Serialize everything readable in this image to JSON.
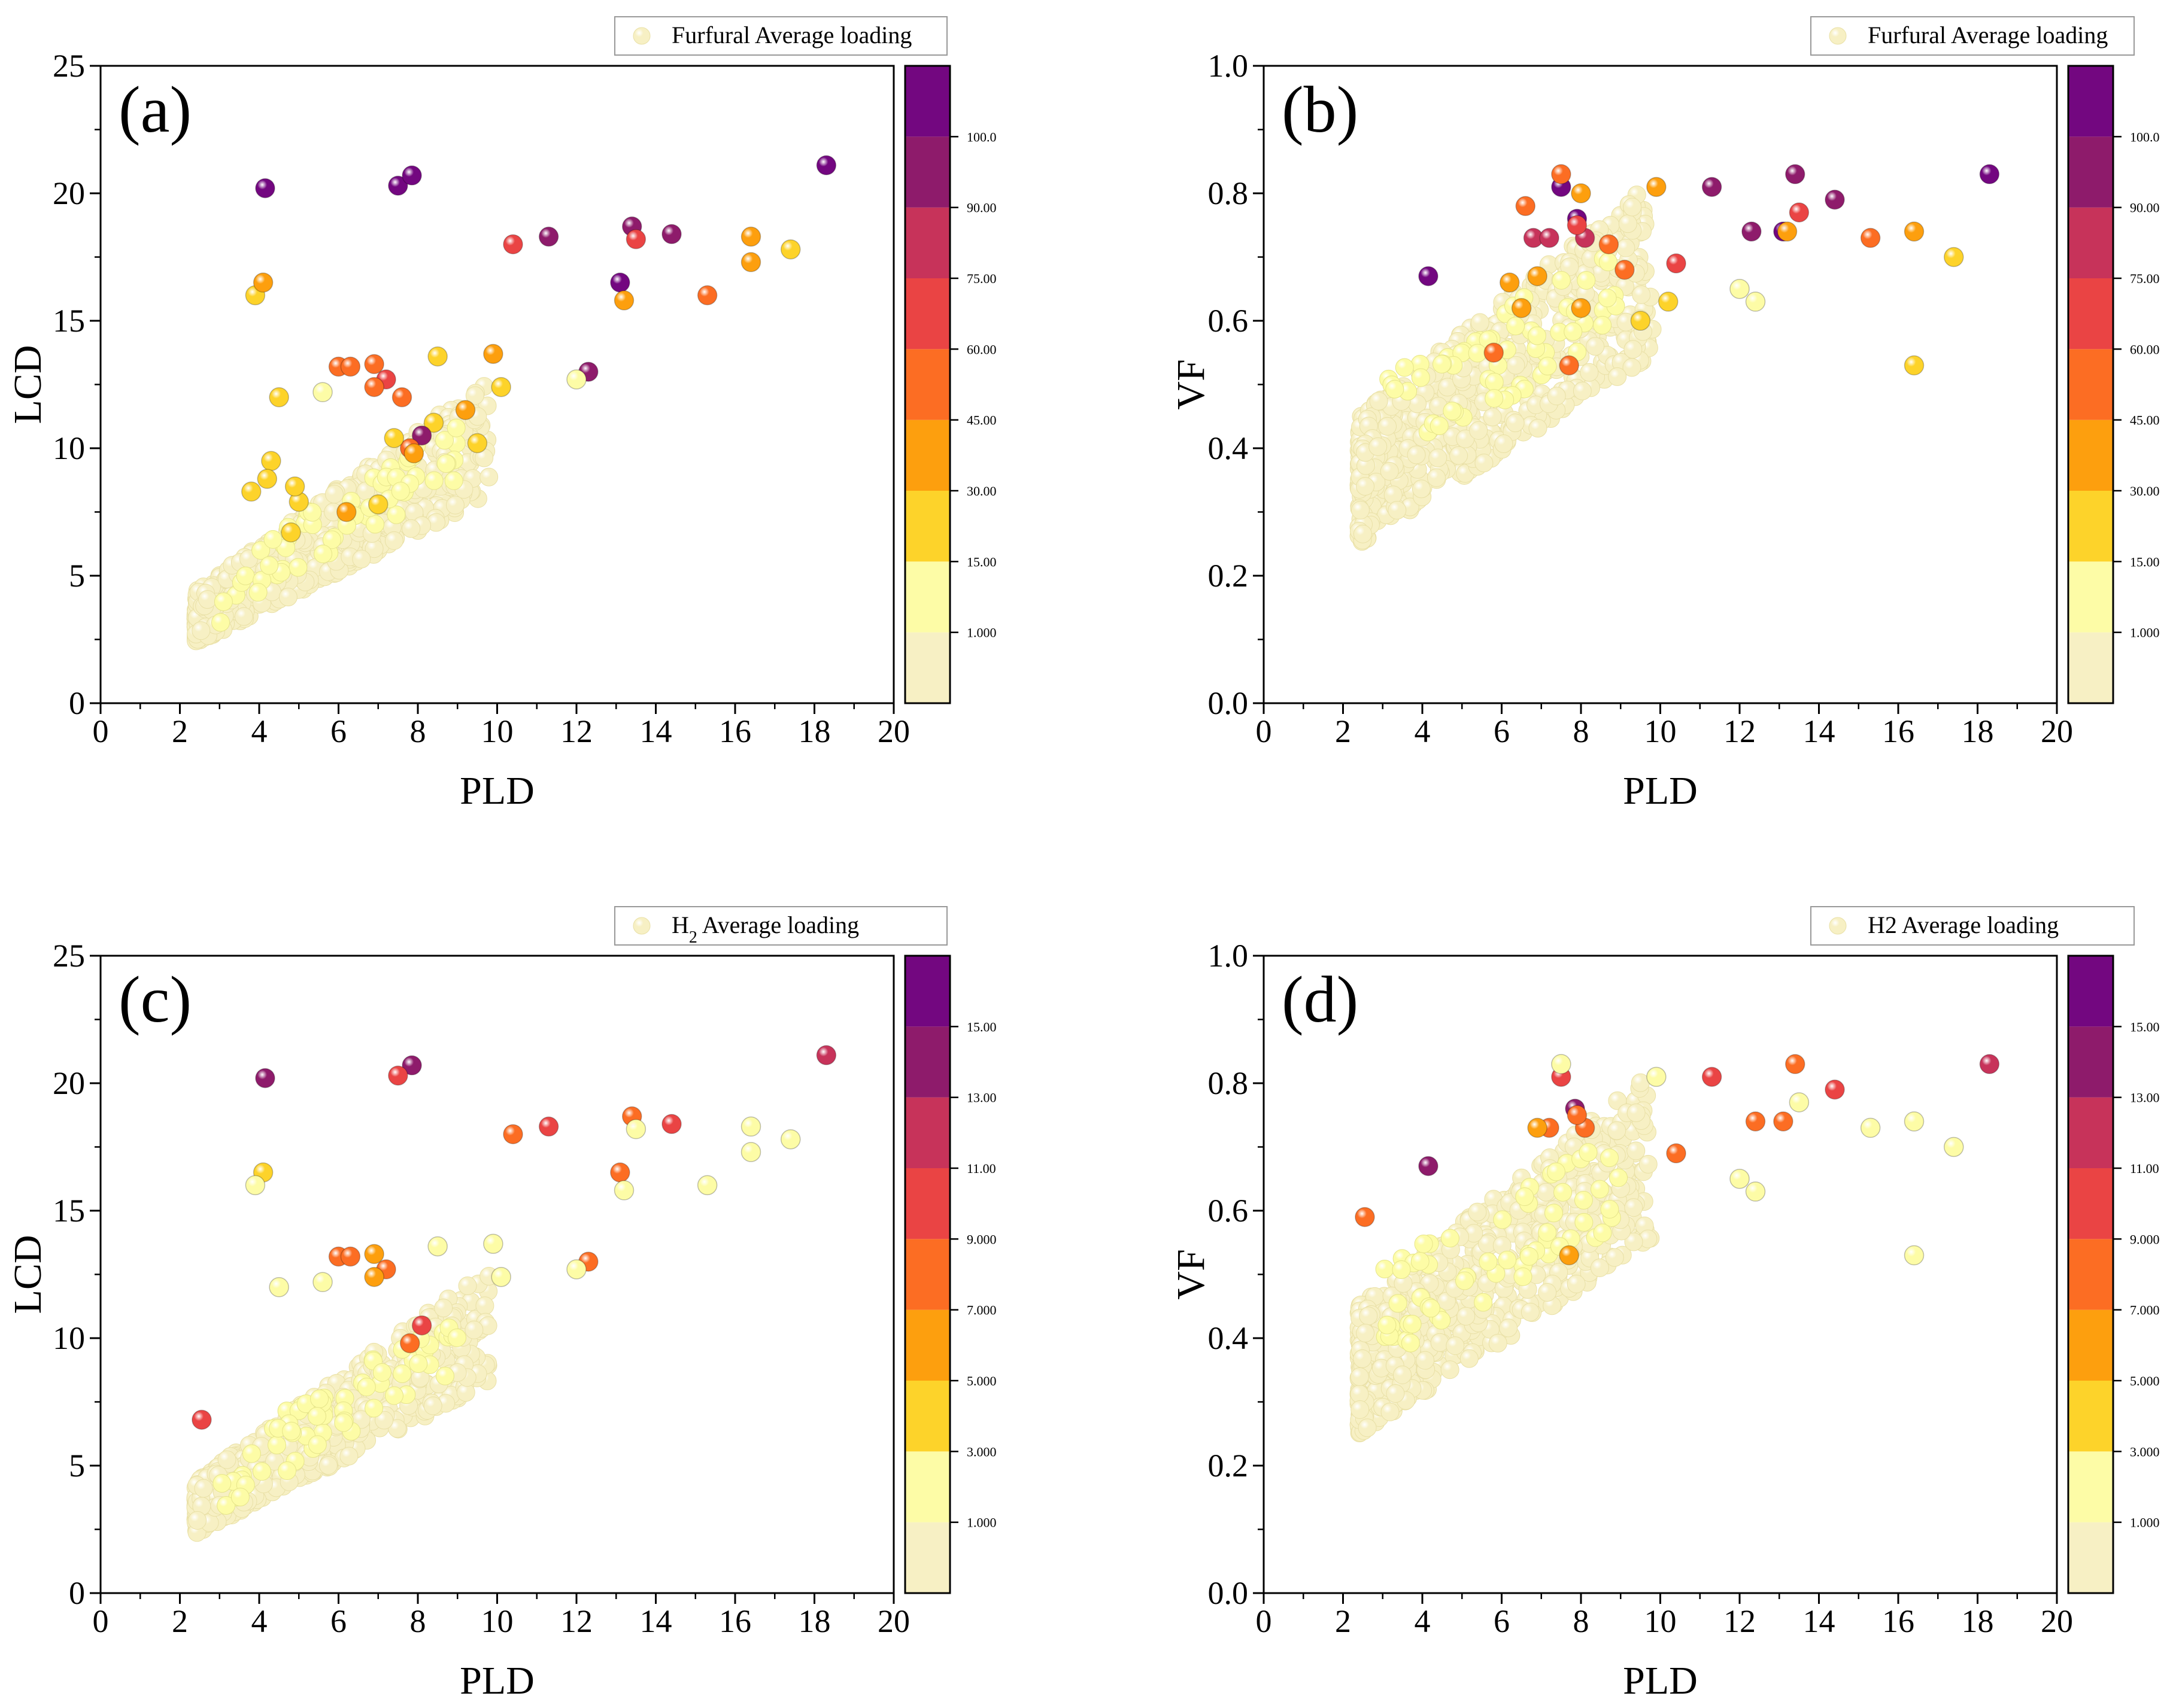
{
  "colors": {
    "ramp": [
      "#f7f0c4",
      "#fdfca6",
      "#fdd32a",
      "#fd9f0e",
      "#fc6d23",
      "#ea4444",
      "#c7335a",
      "#8e1b6b",
      "#730780"
    ],
    "frame": "#000000",
    "background": "#ffffff"
  },
  "chart_data": [
    {
      "type": "scatter",
      "panel_label": "(a)",
      "xlabel": "PLD",
      "ylabel": "LCD",
      "xlim": [
        0,
        20
      ],
      "ylim": [
        0,
        25
      ],
      "xticks": [
        0,
        2,
        4,
        6,
        8,
        10,
        12,
        14,
        16,
        18,
        20
      ],
      "yticks": [
        0,
        5,
        10,
        15,
        20,
        25
      ],
      "legend": "Furfural Average loading",
      "legend_position": "top-right",
      "colorbar": {
        "levels": [
          0,
          1,
          15,
          30,
          45,
          60,
          75,
          90,
          100,
          110
        ],
        "labels": [
          "1.000",
          "15.00",
          "30.00",
          "45.00",
          "60.00",
          "75.00",
          "90.00",
          "100.0"
        ]
      },
      "cloud": {
        "x_range": [
          2.4,
          9.5
        ],
        "note_series": "dense low-loading cluster"
      },
      "points": [
        {
          "x": 4.15,
          "y": 20.2,
          "c": 105
        },
        {
          "x": 7.5,
          "y": 20.3,
          "c": 102
        },
        {
          "x": 7.85,
          "y": 20.7,
          "c": 102
        },
        {
          "x": 18.3,
          "y": 21.1,
          "c": 103
        },
        {
          "x": 13.4,
          "y": 18.7,
          "c": 95
        },
        {
          "x": 14.4,
          "y": 18.4,
          "c": 92
        },
        {
          "x": 11.3,
          "y": 18.3,
          "c": 92
        },
        {
          "x": 13.5,
          "y": 18.2,
          "c": 70
        },
        {
          "x": 10.4,
          "y": 18.0,
          "c": 66
        },
        {
          "x": 16.4,
          "y": 18.3,
          "c": 38
        },
        {
          "x": 17.4,
          "y": 17.8,
          "c": 25
        },
        {
          "x": 16.4,
          "y": 17.3,
          "c": 34
        },
        {
          "x": 13.1,
          "y": 16.5,
          "c": 104
        },
        {
          "x": 13.2,
          "y": 15.8,
          "c": 40
        },
        {
          "x": 15.3,
          "y": 16.0,
          "c": 50
        },
        {
          "x": 3.9,
          "y": 16.0,
          "c": 22
        },
        {
          "x": 4.1,
          "y": 16.5,
          "c": 38
        },
        {
          "x": 12.3,
          "y": 13.0,
          "c": 93
        },
        {
          "x": 12.0,
          "y": 12.7,
          "c": 10
        },
        {
          "x": 9.9,
          "y": 13.7,
          "c": 33
        },
        {
          "x": 8.5,
          "y": 13.6,
          "c": 20
        },
        {
          "x": 6.0,
          "y": 13.2,
          "c": 52
        },
        {
          "x": 6.3,
          "y": 13.2,
          "c": 52
        },
        {
          "x": 6.9,
          "y": 13.3,
          "c": 52
        },
        {
          "x": 7.2,
          "y": 12.7,
          "c": 62
        },
        {
          "x": 6.9,
          "y": 12.4,
          "c": 52
        },
        {
          "x": 7.6,
          "y": 12.0,
          "c": 52
        },
        {
          "x": 4.5,
          "y": 12.0,
          "c": 20
        },
        {
          "x": 5.6,
          "y": 12.2,
          "c": 8
        },
        {
          "x": 10.1,
          "y": 12.4,
          "c": 20
        },
        {
          "x": 9.2,
          "y": 11.5,
          "c": 33
        },
        {
          "x": 8.4,
          "y": 11.0,
          "c": 22
        },
        {
          "x": 8.1,
          "y": 10.5,
          "c": 90
        },
        {
          "x": 7.8,
          "y": 10.0,
          "c": 45
        },
        {
          "x": 7.9,
          "y": 9.8,
          "c": 40
        },
        {
          "x": 9.5,
          "y": 10.2,
          "c": 20
        },
        {
          "x": 7.4,
          "y": 10.4,
          "c": 22
        },
        {
          "x": 7.0,
          "y": 7.8,
          "c": 25
        },
        {
          "x": 4.3,
          "y": 9.5,
          "c": 25
        },
        {
          "x": 4.2,
          "y": 8.8,
          "c": 28
        },
        {
          "x": 3.8,
          "y": 8.3,
          "c": 25
        },
        {
          "x": 6.2,
          "y": 7.5,
          "c": 30
        },
        {
          "x": 5.0,
          "y": 7.9,
          "c": 25
        },
        {
          "x": 4.8,
          "y": 6.7,
          "c": 25
        },
        {
          "x": 4.9,
          "y": 8.5,
          "c": 25
        }
      ]
    },
    {
      "type": "scatter",
      "panel_label": "(b)",
      "xlabel": "PLD",
      "ylabel": "VF",
      "xlim": [
        0,
        20
      ],
      "ylim": [
        0.0,
        1.0
      ],
      "xticks": [
        0,
        2,
        4,
        6,
        8,
        10,
        12,
        14,
        16,
        18,
        20
      ],
      "yticks": [
        0.0,
        0.2,
        0.4,
        0.6,
        0.8,
        1.0
      ],
      "legend": "Furfural Average loading",
      "legend_position": "top-right",
      "colorbar": {
        "levels": [
          0,
          1,
          15,
          30,
          45,
          60,
          75,
          90,
          100,
          110
        ],
        "labels": [
          "1.000",
          "15.00",
          "30.00",
          "45.00",
          "60.00",
          "75.00",
          "90.00",
          "100.0"
        ]
      },
      "points": [
        {
          "x": 7.5,
          "y": 0.81,
          "c": 102
        },
        {
          "x": 7.9,
          "y": 0.76,
          "c": 102
        },
        {
          "x": 4.15,
          "y": 0.67,
          "c": 105
        },
        {
          "x": 18.3,
          "y": 0.83,
          "c": 103
        },
        {
          "x": 13.4,
          "y": 0.83,
          "c": 95
        },
        {
          "x": 14.4,
          "y": 0.79,
          "c": 92
        },
        {
          "x": 11.3,
          "y": 0.81,
          "c": 92
        },
        {
          "x": 12.3,
          "y": 0.74,
          "c": 93
        },
        {
          "x": 13.1,
          "y": 0.74,
          "c": 104
        },
        {
          "x": 13.5,
          "y": 0.77,
          "c": 70
        },
        {
          "x": 10.4,
          "y": 0.69,
          "c": 66
        },
        {
          "x": 15.3,
          "y": 0.73,
          "c": 50
        },
        {
          "x": 16.4,
          "y": 0.74,
          "c": 38
        },
        {
          "x": 17.4,
          "y": 0.7,
          "c": 25
        },
        {
          "x": 16.4,
          "y": 0.53,
          "c": 25
        },
        {
          "x": 13.2,
          "y": 0.74,
          "c": 40
        },
        {
          "x": 9.9,
          "y": 0.81,
          "c": 33
        },
        {
          "x": 7.5,
          "y": 0.83,
          "c": 50
        },
        {
          "x": 8.0,
          "y": 0.8,
          "c": 40
        },
        {
          "x": 6.8,
          "y": 0.73,
          "c": 75
        },
        {
          "x": 7.2,
          "y": 0.73,
          "c": 75
        },
        {
          "x": 8.1,
          "y": 0.73,
          "c": 85
        },
        {
          "x": 7.9,
          "y": 0.75,
          "c": 70
        },
        {
          "x": 6.6,
          "y": 0.78,
          "c": 45
        },
        {
          "x": 7.7,
          "y": 0.53,
          "c": 52
        },
        {
          "x": 8.7,
          "y": 0.72,
          "c": 45
        },
        {
          "x": 9.1,
          "y": 0.68,
          "c": 45
        },
        {
          "x": 12.0,
          "y": 0.65,
          "c": 10
        },
        {
          "x": 12.4,
          "y": 0.63,
          "c": 10
        },
        {
          "x": 6.2,
          "y": 0.66,
          "c": 40
        },
        {
          "x": 5.8,
          "y": 0.55,
          "c": 45
        },
        {
          "x": 6.5,
          "y": 0.62,
          "c": 35
        },
        {
          "x": 8.0,
          "y": 0.62,
          "c": 30
        },
        {
          "x": 9.5,
          "y": 0.6,
          "c": 25
        },
        {
          "x": 10.2,
          "y": 0.63,
          "c": 25
        },
        {
          "x": 6.9,
          "y": 0.67,
          "c": 40
        }
      ]
    },
    {
      "type": "scatter",
      "panel_label": "(c)",
      "xlabel": "PLD",
      "ylabel": "LCD",
      "xlim": [
        0,
        20
      ],
      "ylim": [
        0,
        25
      ],
      "xticks": [
        0,
        2,
        4,
        6,
        8,
        10,
        12,
        14,
        16,
        18,
        20
      ],
      "yticks": [
        0,
        5,
        10,
        15,
        20,
        25
      ],
      "legend": "H<sub>2</sub> Average loading",
      "legend_position": "top-right",
      "colorbar": {
        "levels": [
          0,
          1,
          3,
          5,
          7,
          9,
          11,
          13,
          15,
          17
        ],
        "labels": [
          "1.000",
          "3.000",
          "5.000",
          "7.000",
          "9.000",
          "11.00",
          "13.00",
          "15.00"
        ]
      },
      "points": [
        {
          "x": 4.15,
          "y": 20.2,
          "c": 14.5
        },
        {
          "x": 7.85,
          "y": 20.7,
          "c": 13.8
        },
        {
          "x": 18.3,
          "y": 21.1,
          "c": 12.5
        },
        {
          "x": 7.5,
          "y": 20.3,
          "c": 9.5
        },
        {
          "x": 11.3,
          "y": 18.3,
          "c": 10.5
        },
        {
          "x": 14.4,
          "y": 18.4,
          "c": 9.5
        },
        {
          "x": 13.4,
          "y": 18.7,
          "c": 8.0
        },
        {
          "x": 10.4,
          "y": 18.0,
          "c": 7.5
        },
        {
          "x": 13.5,
          "y": 18.2,
          "c": 2.5
        },
        {
          "x": 13.1,
          "y": 16.5,
          "c": 8.5
        },
        {
          "x": 12.3,
          "y": 13.0,
          "c": 8.0
        },
        {
          "x": 6.0,
          "y": 13.2,
          "c": 8.5
        },
        {
          "x": 6.3,
          "y": 13.2,
          "c": 8.5
        },
        {
          "x": 6.9,
          "y": 13.3,
          "c": 6.5
        },
        {
          "x": 7.2,
          "y": 12.7,
          "c": 8.0
        },
        {
          "x": 6.9,
          "y": 12.4,
          "c": 6.0
        },
        {
          "x": 8.1,
          "y": 10.5,
          "c": 9.5
        },
        {
          "x": 7.8,
          "y": 9.8,
          "c": 7.0
        },
        {
          "x": 2.55,
          "y": 6.8,
          "c": 9.5
        },
        {
          "x": 4.1,
          "y": 16.5,
          "c": 4.0
        },
        {
          "x": 3.9,
          "y": 16.0,
          "c": 2.0
        },
        {
          "x": 16.4,
          "y": 18.3,
          "c": 1.5
        },
        {
          "x": 17.4,
          "y": 17.8,
          "c": 1.5
        },
        {
          "x": 16.4,
          "y": 17.3,
          "c": 1.5
        },
        {
          "x": 15.3,
          "y": 16.0,
          "c": 1.5
        },
        {
          "x": 13.2,
          "y": 15.8,
          "c": 2.0
        },
        {
          "x": 12.0,
          "y": 12.7,
          "c": 1.5
        },
        {
          "x": 9.9,
          "y": 13.7,
          "c": 1.5
        },
        {
          "x": 8.5,
          "y": 13.6,
          "c": 1.2
        },
        {
          "x": 4.5,
          "y": 12.0,
          "c": 1.5
        },
        {
          "x": 5.6,
          "y": 12.2,
          "c": 1.2
        },
        {
          "x": 10.1,
          "y": 12.4,
          "c": 1.5
        }
      ]
    },
    {
      "type": "scatter",
      "panel_label": "(d)",
      "xlabel": "PLD",
      "ylabel": "VF",
      "xlim": [
        0,
        20
      ],
      "ylim": [
        0.0,
        1.0
      ],
      "xticks": [
        0,
        2,
        4,
        6,
        8,
        10,
        12,
        14,
        16,
        18,
        20
      ],
      "yticks": [
        0.0,
        0.2,
        0.4,
        0.6,
        0.8,
        1.0
      ],
      "legend": "H2 Average loading",
      "legend_position": "top-right",
      "colorbar": {
        "levels": [
          0,
          1,
          3,
          5,
          7,
          9,
          11,
          13,
          15,
          17
        ],
        "labels": [
          "1.000",
          "3.000",
          "5.000",
          "7.000",
          "9.000",
          "11.00",
          "13.00",
          "15.00"
        ]
      },
      "points": [
        {
          "x": 4.15,
          "y": 0.67,
          "c": 14.5
        },
        {
          "x": 7.85,
          "y": 0.76,
          "c": 13.8
        },
        {
          "x": 18.3,
          "y": 0.83,
          "c": 12.5
        },
        {
          "x": 11.3,
          "y": 0.81,
          "c": 10.5
        },
        {
          "x": 7.5,
          "y": 0.81,
          "c": 9.5
        },
        {
          "x": 14.4,
          "y": 0.79,
          "c": 9.5
        },
        {
          "x": 13.4,
          "y": 0.83,
          "c": 8.0
        },
        {
          "x": 10.4,
          "y": 0.69,
          "c": 7.5
        },
        {
          "x": 12.4,
          "y": 0.74,
          "c": 8.0
        },
        {
          "x": 13.1,
          "y": 0.74,
          "c": 8.5
        },
        {
          "x": 2.55,
          "y": 0.59,
          "c": 8.5
        },
        {
          "x": 7.2,
          "y": 0.73,
          "c": 7.0
        },
        {
          "x": 8.1,
          "y": 0.73,
          "c": 8.5
        },
        {
          "x": 7.9,
          "y": 0.75,
          "c": 7.0
        },
        {
          "x": 6.9,
          "y": 0.73,
          "c": 6.0
        },
        {
          "x": 7.7,
          "y": 0.53,
          "c": 5.5
        },
        {
          "x": 16.4,
          "y": 0.74,
          "c": 1.5
        },
        {
          "x": 17.4,
          "y": 0.7,
          "c": 1.5
        },
        {
          "x": 16.4,
          "y": 0.53,
          "c": 1.5
        },
        {
          "x": 15.3,
          "y": 0.73,
          "c": 1.5
        },
        {
          "x": 13.5,
          "y": 0.77,
          "c": 2.0
        },
        {
          "x": 9.9,
          "y": 0.81,
          "c": 1.5
        },
        {
          "x": 12.0,
          "y": 0.65,
          "c": 1.2
        },
        {
          "x": 12.4,
          "y": 0.63,
          "c": 1.2
        },
        {
          "x": 7.5,
          "y": 0.83,
          "c": 2.0
        }
      ]
    }
  ]
}
